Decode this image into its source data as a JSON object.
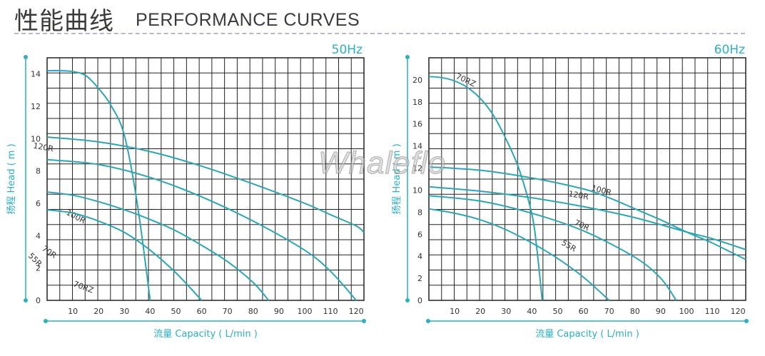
{
  "page": {
    "title_zh": "性能曲线",
    "title_en": "PERFORMANCE CURVES",
    "watermark": "Whaleflo"
  },
  "colors": {
    "curve": "#2aa6b8",
    "grid": "#222222",
    "axis_accent": "#2ab0c0",
    "label": "#333333"
  },
  "chart_data": [
    {
      "type": "line",
      "title": "50Hz",
      "xlabel": "流量 Capacity ( L/min )",
      "ylabel": "扬程 Head ( m )",
      "xlim": [
        0,
        123
      ],
      "ylim": [
        0,
        15
      ],
      "xticks": [
        10,
        20,
        30,
        40,
        50,
        60,
        70,
        80,
        90,
        100,
        110,
        120
      ],
      "yticks": [
        0,
        2,
        4,
        6,
        8,
        10,
        12,
        14
      ],
      "series": [
        {
          "name": "70RZ",
          "x": [
            0,
            5,
            10,
            15,
            20,
            25,
            30,
            35,
            40
          ],
          "y": [
            14.2,
            14.2,
            14.15,
            13.9,
            13.1,
            12.0,
            10.2,
            6.0,
            0
          ]
        },
        {
          "name": "120R",
          "x": [
            0,
            20,
            40,
            60,
            80,
            100,
            110,
            120,
            123
          ],
          "y": [
            10.1,
            9.8,
            9.2,
            8.3,
            7.2,
            6.0,
            5.3,
            4.6,
            4.2
          ]
        },
        {
          "name": "100R",
          "x": [
            0,
            20,
            40,
            60,
            80,
            100,
            110,
            120
          ],
          "y": [
            8.7,
            8.4,
            7.6,
            6.4,
            4.9,
            3.1,
            1.8,
            0
          ]
        },
        {
          "name": "70R",
          "x": [
            0,
            10,
            20,
            30,
            40,
            50,
            60,
            70,
            80,
            86
          ],
          "y": [
            6.7,
            6.5,
            6.1,
            5.6,
            5.0,
            4.3,
            3.4,
            2.4,
            1.1,
            0
          ]
        },
        {
          "name": "55R",
          "x": [
            0,
            10,
            20,
            30,
            40,
            50,
            60
          ],
          "y": [
            5.6,
            5.4,
            4.9,
            4.2,
            3.1,
            1.7,
            0
          ]
        }
      ]
    },
    {
      "type": "line",
      "title": "60Hz",
      "xlabel": "流量 Capacity ( L/min )",
      "ylabel": "扬程 Head ( m )",
      "xlim": [
        0,
        123
      ],
      "ylim": [
        0,
        22
      ],
      "xticks": [
        10,
        20,
        30,
        40,
        50,
        60,
        70,
        80,
        90,
        100,
        110,
        120
      ],
      "yticks": [
        0,
        2,
        4,
        6,
        8,
        10,
        12,
        14,
        16,
        18,
        20
      ],
      "series": [
        {
          "name": "70RZ",
          "x": [
            0,
            5,
            10,
            15,
            20,
            25,
            30,
            35,
            40,
            42,
            44
          ],
          "y": [
            20.3,
            20.2,
            19.9,
            19.3,
            18.3,
            16.8,
            14.6,
            11.9,
            7.8,
            4.5,
            0
          ]
        },
        {
          "name": "100R",
          "x": [
            0,
            20,
            40,
            60,
            70,
            80,
            90,
            100,
            110,
            123
          ],
          "y": [
            12.1,
            11.8,
            11.1,
            10.1,
            9.3,
            8.3,
            7.3,
            6.2,
            5.2,
            3.7
          ]
        },
        {
          "name": "120R",
          "x": [
            0,
            20,
            40,
            60,
            80,
            100,
            110,
            123
          ],
          "y": [
            10.3,
            9.9,
            9.3,
            8.5,
            7.5,
            6.2,
            5.6,
            4.6
          ]
        },
        {
          "name": "70R",
          "x": [
            0,
            20,
            40,
            60,
            80,
            90,
            96
          ],
          "y": [
            9.5,
            9.0,
            7.9,
            6.3,
            3.9,
            2.0,
            0
          ]
        },
        {
          "name": "55R",
          "x": [
            0,
            10,
            20,
            30,
            40,
            50,
            60,
            70
          ],
          "y": [
            8.3,
            7.9,
            7.3,
            6.4,
            5.2,
            3.8,
            2.1,
            0
          ]
        }
      ]
    }
  ]
}
